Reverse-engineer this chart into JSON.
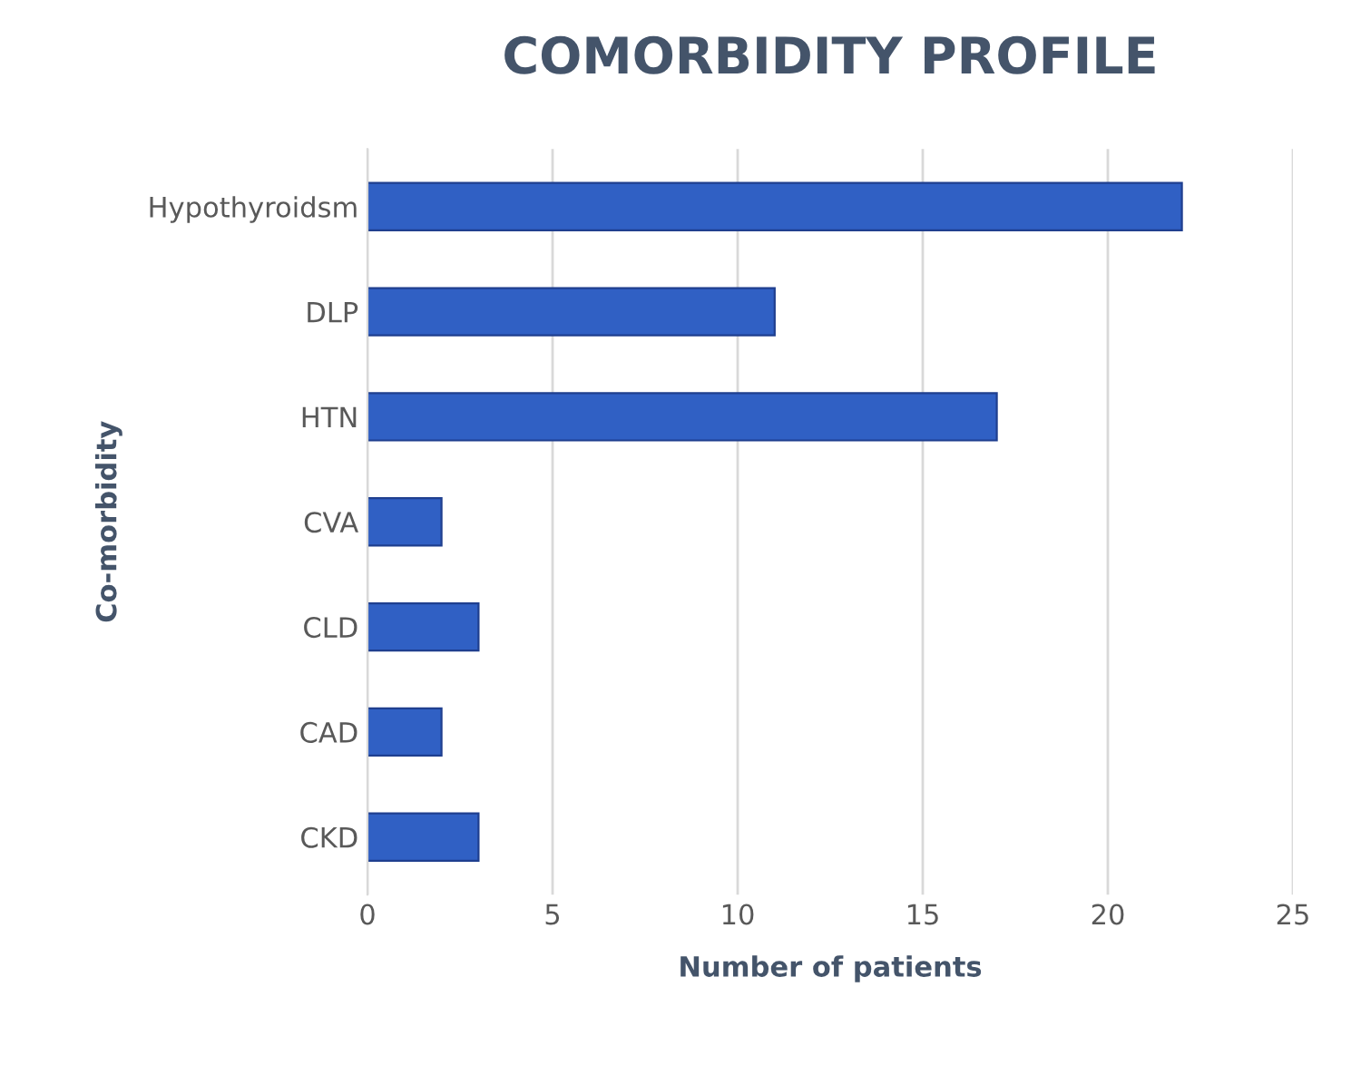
{
  "chart_data": {
    "type": "bar",
    "orientation": "horizontal",
    "title": "COMORBIDITY PROFILE",
    "xlabel": "Number of patients",
    "ylabel": "Co-morbidity",
    "categories": [
      "Hypothyroidsm",
      "DLP",
      "HTN",
      "CVA",
      "CLD",
      "CAD",
      "CKD"
    ],
    "values": [
      22,
      11,
      17,
      2,
      3,
      2,
      3
    ],
    "color": "#3060c4",
    "xlim": [
      0,
      25
    ],
    "xticks": [
      0,
      5,
      10,
      15,
      20,
      25
    ],
    "grid": "x"
  }
}
